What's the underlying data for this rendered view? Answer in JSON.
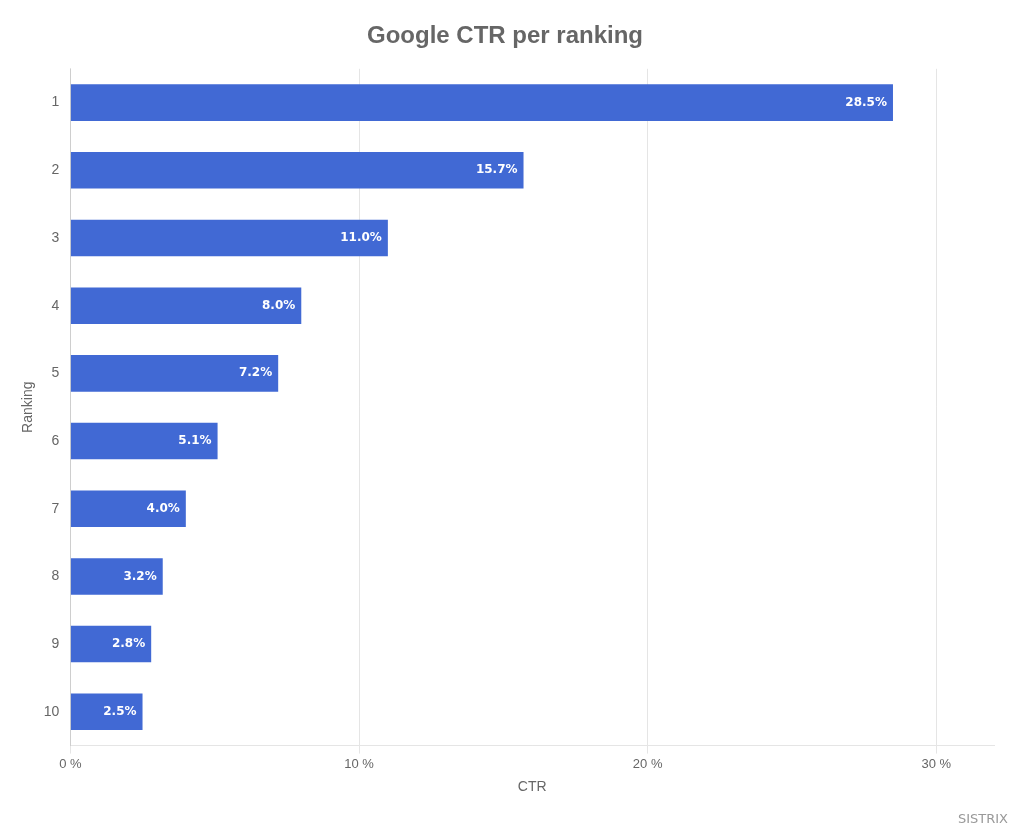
{
  "chart_data": {
    "type": "bar",
    "orientation": "horizontal",
    "title": "Google CTR per ranking",
    "categories": [
      "1",
      "2",
      "3",
      "4",
      "5",
      "6",
      "7",
      "8",
      "9",
      "10"
    ],
    "values": [
      28.5,
      15.7,
      11.0,
      8.0,
      7.2,
      5.1,
      4.0,
      3.2,
      2.8,
      2.5
    ],
    "value_labels": [
      "28.5%",
      "15.7%",
      "11.0%",
      "8.0%",
      "7.2%",
      "5.1%",
      "4.0%",
      "3.2%",
      "2.8%",
      "2.5%"
    ],
    "data_labels": true,
    "color": "#4169d4",
    "xlabel": "CTR",
    "ylabel": "Ranking",
    "xlim": [
      0,
      32
    ],
    "xticks": [
      {
        "value": 0,
        "label": "0 %"
      },
      {
        "value": 10,
        "label": "10 %"
      },
      {
        "value": 20,
        "label": "20 %"
      },
      {
        "value": 30,
        "label": "30 %"
      }
    ],
    "grid": true,
    "annotations": [
      "SISTRIX"
    ]
  }
}
